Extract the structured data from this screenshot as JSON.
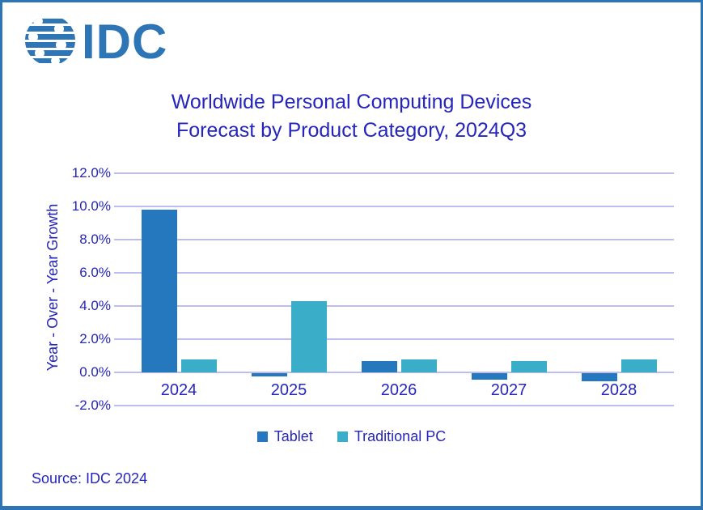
{
  "logo": {
    "brand": "IDC"
  },
  "title": {
    "line1": "Worldwide Personal Computing Devices",
    "line2": "Forecast by Product Category, 2024Q3"
  },
  "source": "Source: IDC 2024",
  "colors": {
    "border": "#2E75B6",
    "logo_blue": "#2E75B6",
    "text_navy": "#2525BE",
    "gridline": "#BDBDF0",
    "tablet": "#2577BE",
    "traditional_pc": "#3AAEC9"
  },
  "chart_data": {
    "type": "bar",
    "title": "Worldwide Personal Computing Devices Forecast by Product Category, 2024Q3",
    "categories": [
      "2024",
      "2025",
      "2026",
      "2027",
      "2028"
    ],
    "series": [
      {
        "name": "Tablet",
        "color": "#2577BE",
        "values": [
          9.8,
          -0.2,
          0.7,
          -0.4,
          -0.5
        ]
      },
      {
        "name": "Traditional PC",
        "color": "#3AAEC9",
        "values": [
          0.8,
          4.3,
          0.8,
          0.7,
          0.8
        ]
      }
    ],
    "xlabel": "",
    "ylabel": "Year - Over - Year Growth",
    "ylim": [
      -2,
      12
    ],
    "ytick_step": 2,
    "ytick_labels": [
      "12.0%",
      "10.0%",
      "8.0%",
      "6.0%",
      "4.0%",
      "2.0%",
      "0.0%",
      "-2.0%"
    ],
    "grid": true,
    "legend_position": "bottom"
  }
}
